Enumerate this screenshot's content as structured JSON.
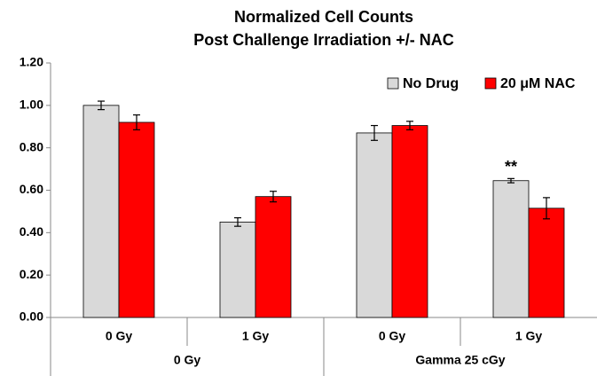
{
  "chart_data": {
    "type": "bar",
    "title": [
      "Normalized Cell Counts",
      "Post Challenge Irradiation +/- NAC"
    ],
    "categories": [
      "0 Gy",
      "1 Gy",
      "0 Gy",
      "1 Gy"
    ],
    "groups": [
      "0 Gy",
      "Gamma 25 cGy"
    ],
    "series": [
      {
        "name": "No Drug",
        "color": "#d9d9d9",
        "values": [
          1.0,
          0.45,
          0.87,
          0.645
        ],
        "errors": [
          0.02,
          0.02,
          0.035,
          0.01
        ]
      },
      {
        "name": "20 μM NAC",
        "color": "#ff0000",
        "values": [
          0.92,
          0.57,
          0.905,
          0.515
        ],
        "errors": [
          0.035,
          0.025,
          0.02,
          0.05
        ]
      }
    ],
    "annotation": "**",
    "ylim": [
      0,
      1.2
    ],
    "yticks": [
      {
        "value": 0,
        "label": "0.00"
      },
      {
        "value": 0.2,
        "label": "0.20"
      },
      {
        "value": 0.4,
        "label": "0.40"
      },
      {
        "value": 0.6,
        "label": "0.60"
      },
      {
        "value": 0.8,
        "label": "0.80"
      },
      {
        "value": 1.0,
        "label": "1.00"
      },
      {
        "value": 1.2,
        "label": "1.20"
      }
    ],
    "legend": "top-right",
    "grid": false
  }
}
